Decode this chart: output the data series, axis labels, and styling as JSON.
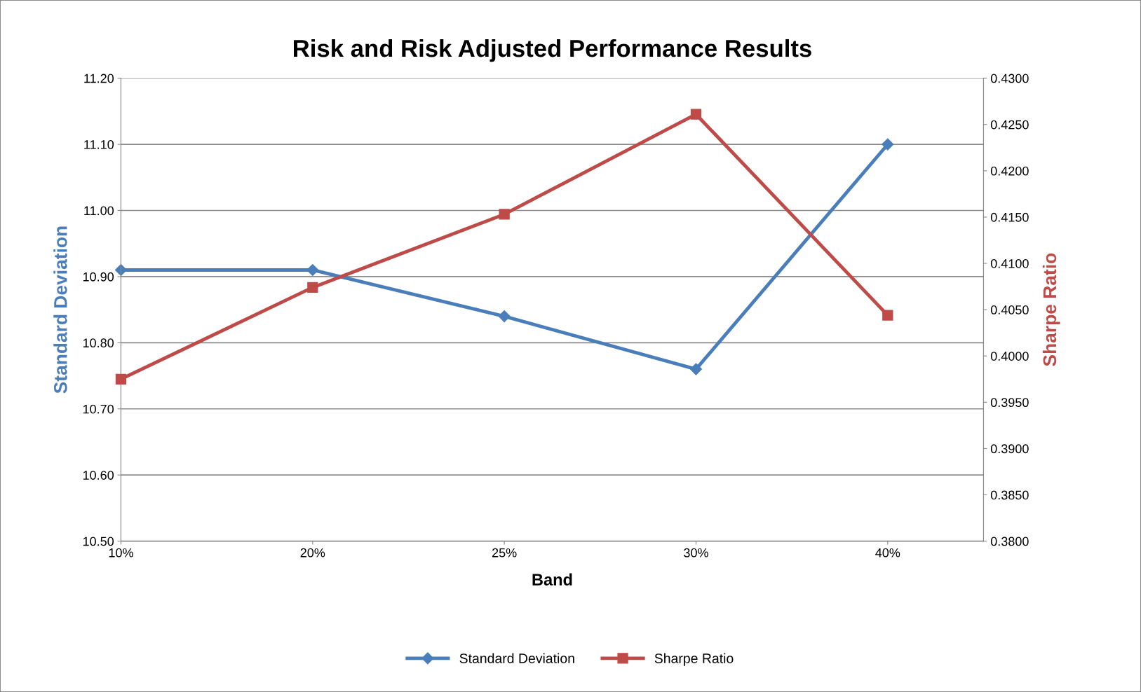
{
  "chart_data": {
    "type": "line",
    "title": "Risk and Risk Adjusted Performance Results",
    "xlabel": "Band",
    "ylabel": "Standard Deviation",
    "y2label": "Sharpe Ratio",
    "categories": [
      "10%",
      "20%",
      "25%",
      "30%",
      "40%"
    ],
    "series": [
      {
        "name": "Standard Deviation",
        "color": "#4a7ebb",
        "marker": "diamond",
        "values": [
          10.91,
          10.91,
          10.84,
          10.76,
          11.1
        ]
      },
      {
        "name": "Sharpe Ratio",
        "color": "#be4b48",
        "marker": "square",
        "axis": "y2",
        "values": [
          0.3975,
          0.4074,
          0.4153,
          0.4261,
          0.4044
        ]
      }
    ],
    "ylim": [
      10.5,
      11.2
    ],
    "yticks": [
      {
        "value": 10.5,
        "label": "10.50"
      },
      {
        "value": 10.6,
        "label": "10.60"
      },
      {
        "value": 10.7,
        "label": "10.70"
      },
      {
        "value": 10.8,
        "label": "10.80"
      },
      {
        "value": 10.9,
        "label": "10.90"
      },
      {
        "value": 11.0,
        "label": "11.00"
      },
      {
        "value": 11.1,
        "label": "11.10"
      },
      {
        "value": 11.2,
        "label": "11.20"
      }
    ],
    "y2lim": [
      0.38,
      0.43
    ],
    "y2ticks": [
      {
        "value": 0.38,
        "label": "0.3800"
      },
      {
        "value": 0.385,
        "label": "0.3850"
      },
      {
        "value": 0.39,
        "label": "0.3900"
      },
      {
        "value": 0.395,
        "label": "0.3950"
      },
      {
        "value": 0.4,
        "label": "0.4000"
      },
      {
        "value": 0.405,
        "label": "0.4050"
      },
      {
        "value": 0.41,
        "label": "0.4100"
      },
      {
        "value": 0.415,
        "label": "0.4150"
      },
      {
        "value": 0.42,
        "label": "0.4200"
      },
      {
        "value": 0.425,
        "label": "0.4250"
      },
      {
        "value": 0.43,
        "label": "0.4300"
      }
    ],
    "grid": "y",
    "legend": "bottom"
  }
}
